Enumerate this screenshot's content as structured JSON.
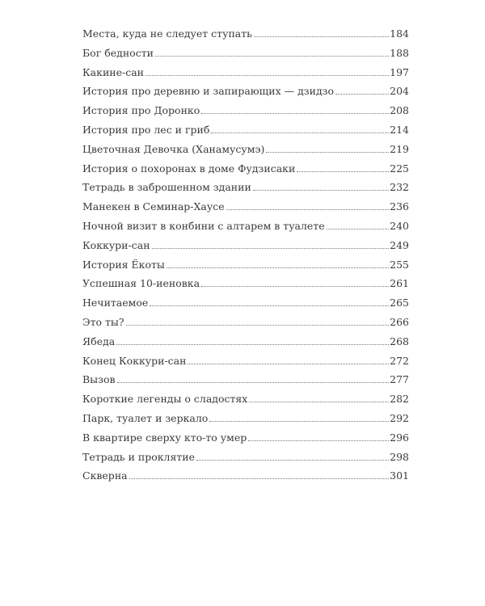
{
  "toc": [
    {
      "title": "Места, куда не следует ступать",
      "page": "184"
    },
    {
      "title": "Бог бедности",
      "page": "188"
    },
    {
      "title": "Какине-сан",
      "page": "197"
    },
    {
      "title": "История про деревню и запирающих — дзидзо",
      "page": "204"
    },
    {
      "title": "История про Доронко",
      "page": "208"
    },
    {
      "title": "История про лес и гриб",
      "page": "214"
    },
    {
      "title": "Цветочная Девочка (Ханамусумэ)",
      "page": "219"
    },
    {
      "title": "История о похоронах в доме Фудзисаки",
      "page": "225"
    },
    {
      "title": "Тетрадь в заброшенном здании",
      "page": "232"
    },
    {
      "title": "Манекен в Семинар-Хаусе",
      "page": "236"
    },
    {
      "title": "Ночной визит в конбини с алтарем в туалете",
      "page": "240"
    },
    {
      "title": "Коккури-сан",
      "page": "249"
    },
    {
      "title": "История Ёкоты",
      "page": "255"
    },
    {
      "title": "Успешная 10-иеновка",
      "page": "261"
    },
    {
      "title": "Нечитаемое",
      "page": "265"
    },
    {
      "title": "Это ты?",
      "page": "266"
    },
    {
      "title": "Ябеда",
      "page": "268"
    },
    {
      "title": "Конец Коккури-сан",
      "page": "272"
    },
    {
      "title": "Вызов",
      "page": "277"
    },
    {
      "title": "Короткие легенды о сладостях",
      "page": "282"
    },
    {
      "title": "Парк, туалет и зеркало",
      "page": "292"
    },
    {
      "title": "В квартире сверху кто-то умер",
      "page": "296"
    },
    {
      "title": "Тетрадь и проклятие",
      "page": "298"
    },
    {
      "title": "Скверна",
      "page": "301"
    }
  ]
}
